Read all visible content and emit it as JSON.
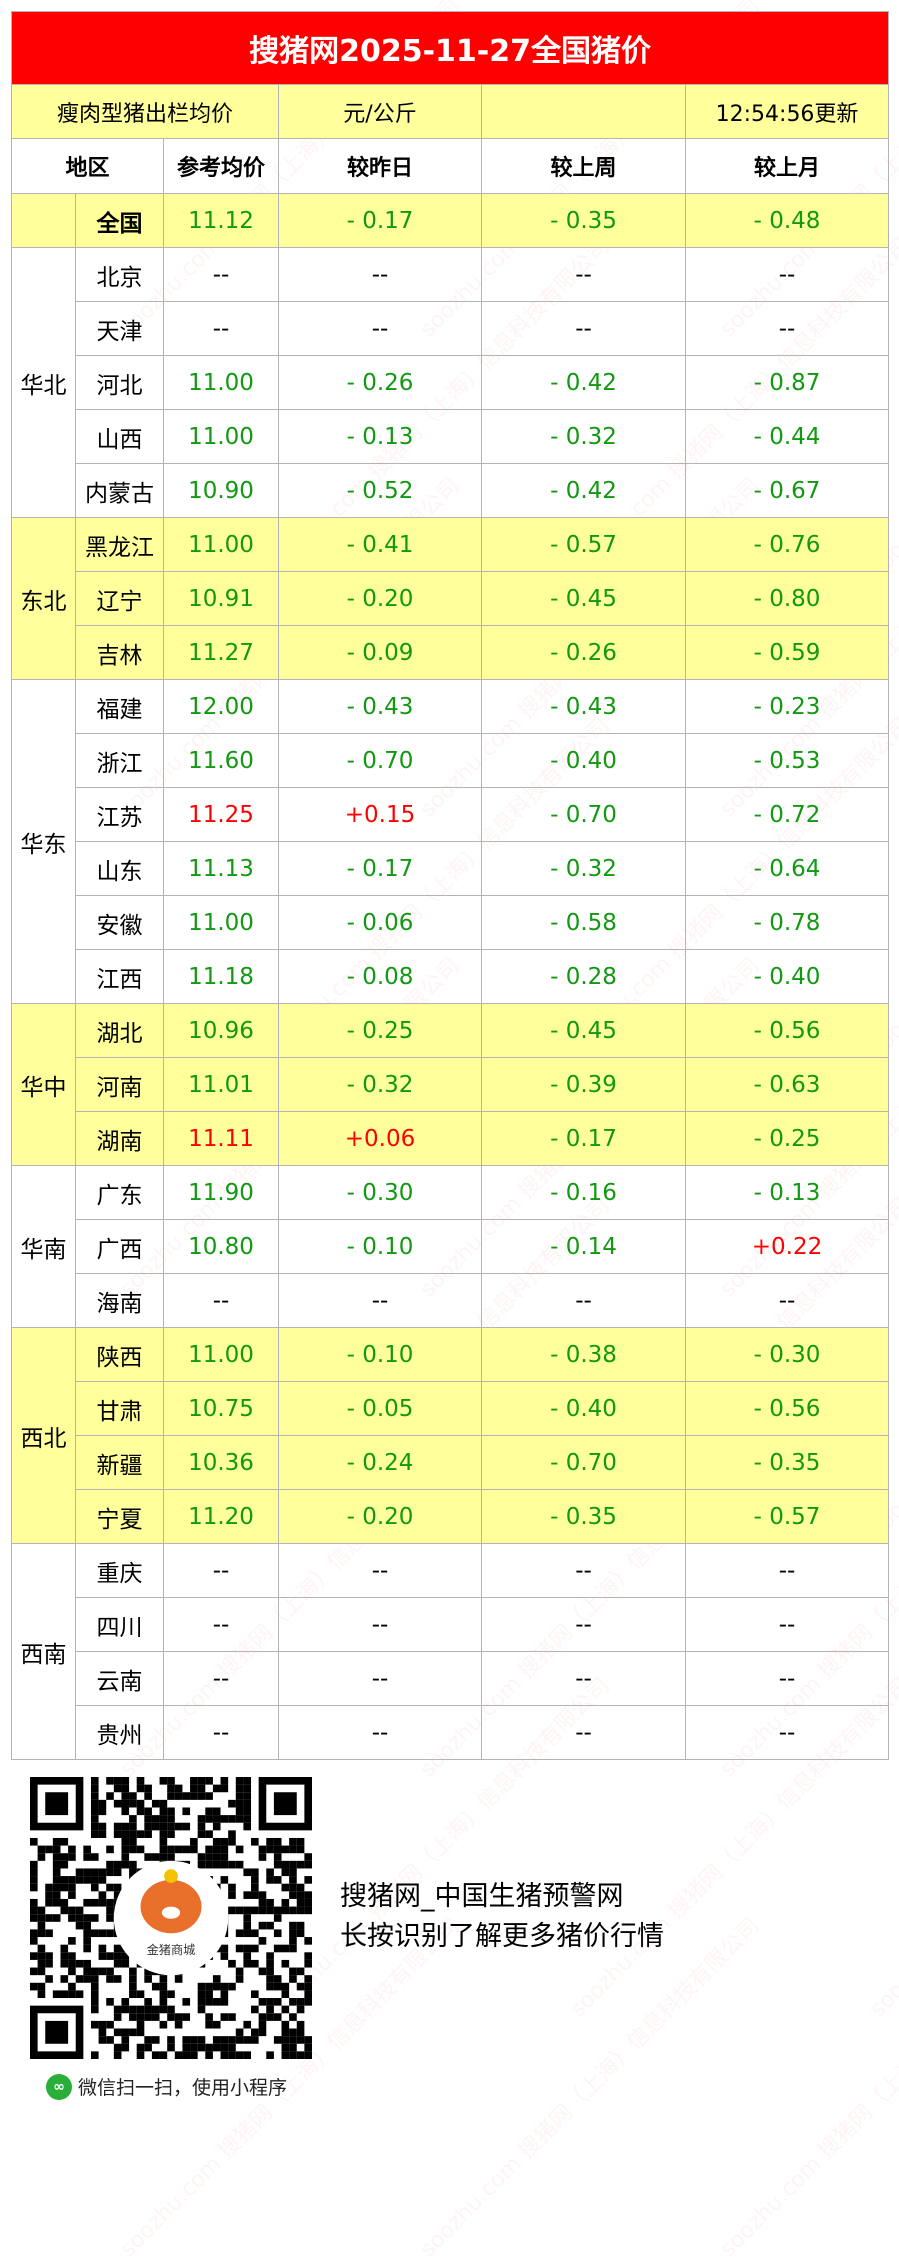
{
  "title": "搜猪网2025-11-27全国猪价",
  "info": {
    "label": "瘦肉型猪出栏均价",
    "unit": "元/公斤",
    "blank": "",
    "updated": "12:54:56更新"
  },
  "headers": {
    "region": "地区",
    "price": "参考均价",
    "day": "较昨日",
    "week": "较上周",
    "month": "较上月"
  },
  "national": {
    "name": "全国",
    "price": "11.12",
    "day": "- 0.17",
    "week": "- 0.35",
    "month": "- 0.48"
  },
  "groups": [
    {
      "region": "华北",
      "rows": [
        {
          "name": "北京",
          "price": "--",
          "day": "--",
          "week": "--",
          "month": "--"
        },
        {
          "name": "天津",
          "price": "--",
          "day": "--",
          "week": "--",
          "month": "--"
        },
        {
          "name": "河北",
          "price": "11.00",
          "day": "- 0.26",
          "week": "- 0.42",
          "month": "- 0.87"
        },
        {
          "name": "山西",
          "price": "11.00",
          "day": "- 0.13",
          "week": "- 0.32",
          "month": "- 0.44"
        },
        {
          "name": "内蒙古",
          "price": "10.90",
          "day": "- 0.52",
          "week": "- 0.42",
          "month": "- 0.67"
        }
      ]
    },
    {
      "region": "东北",
      "rows": [
        {
          "name": "黑龙江",
          "price": "11.00",
          "day": "- 0.41",
          "week": "- 0.57",
          "month": "- 0.76"
        },
        {
          "name": "辽宁",
          "price": "10.91",
          "day": "- 0.20",
          "week": "- 0.45",
          "month": "- 0.80"
        },
        {
          "name": "吉林",
          "price": "11.27",
          "day": "- 0.09",
          "week": "- 0.26",
          "month": "- 0.59"
        }
      ]
    },
    {
      "region": "华东",
      "rows": [
        {
          "name": "福建",
          "price": "12.00",
          "day": "- 0.43",
          "week": "- 0.43",
          "month": "- 0.23"
        },
        {
          "name": "浙江",
          "price": "11.60",
          "day": "- 0.70",
          "week": "- 0.40",
          "month": "- 0.53"
        },
        {
          "name": "江苏",
          "price": "11.25",
          "day": "+0.15",
          "week": "- 0.70",
          "month": "- 0.72"
        },
        {
          "name": "山东",
          "price": "11.13",
          "day": "- 0.17",
          "week": "- 0.32",
          "month": "- 0.64"
        },
        {
          "name": "安徽",
          "price": "11.00",
          "day": "- 0.06",
          "week": "- 0.58",
          "month": "- 0.78"
        },
        {
          "name": "江西",
          "price": "11.18",
          "day": "- 0.08",
          "week": "- 0.28",
          "month": "- 0.40"
        }
      ]
    },
    {
      "region": "华中",
      "rows": [
        {
          "name": "湖北",
          "price": "10.96",
          "day": "- 0.25",
          "week": "- 0.45",
          "month": "- 0.56"
        },
        {
          "name": "河南",
          "price": "11.01",
          "day": "- 0.32",
          "week": "- 0.39",
          "month": "- 0.63"
        },
        {
          "name": "湖南",
          "price": "11.11",
          "day": "+0.06",
          "week": "- 0.17",
          "month": "- 0.25"
        }
      ]
    },
    {
      "region": "华南",
      "rows": [
        {
          "name": "广东",
          "price": "11.90",
          "day": "- 0.30",
          "week": "- 0.16",
          "month": "- 0.13"
        },
        {
          "name": "广西",
          "price": "10.80",
          "day": "- 0.10",
          "week": "- 0.14",
          "month": "+0.22"
        },
        {
          "name": "海南",
          "price": "--",
          "day": "--",
          "week": "--",
          "month": "--"
        }
      ]
    },
    {
      "region": "西北",
      "rows": [
        {
          "name": "陕西",
          "price": "11.00",
          "day": "- 0.10",
          "week": "- 0.38",
          "month": "- 0.30"
        },
        {
          "name": "甘肃",
          "price": "10.75",
          "day": "- 0.05",
          "week": "- 0.40",
          "month": "- 0.56"
        },
        {
          "name": "新疆",
          "price": "10.36",
          "day": "- 0.24",
          "week": "- 0.70",
          "month": "- 0.35"
        },
        {
          "name": "宁夏",
          "price": "11.20",
          "day": "- 0.20",
          "week": "- 0.35",
          "month": "- 0.57"
        }
      ]
    },
    {
      "region": "西南",
      "rows": [
        {
          "name": "重庆",
          "price": "--",
          "day": "--",
          "week": "--",
          "month": "--"
        },
        {
          "name": "四川",
          "price": "--",
          "day": "--",
          "week": "--",
          "month": "--"
        },
        {
          "name": "云南",
          "price": "--",
          "day": "--",
          "week": "--",
          "month": "--"
        },
        {
          "name": "贵州",
          "price": "--",
          "day": "--",
          "week": "--",
          "month": "--"
        }
      ]
    }
  ],
  "colors": {
    "title_bg": "#ff0000",
    "highlight": "#ffff9c",
    "down": "#119911",
    "up": "#ff0000"
  },
  "footer": {
    "line1": "搜猪网_中国生猪预警网",
    "line2": "长按识别了解更多猪价行情",
    "qr_logo": "金猪商城",
    "wechat": "微信扫一扫，使用小程序"
  },
  "watermark": "soozhu.com 搜猪网（上海）信息科技有限公司"
}
